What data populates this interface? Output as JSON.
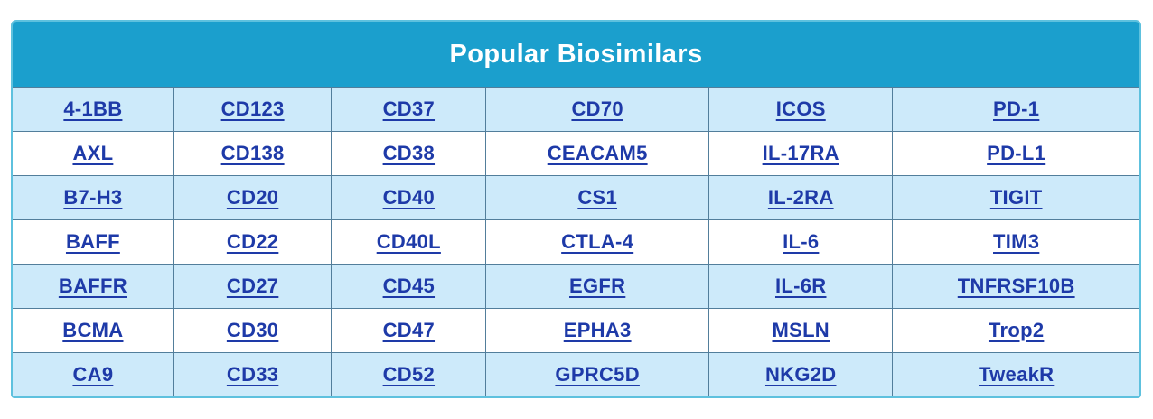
{
  "header": {
    "title": "Popular Biosimilars"
  },
  "colors": {
    "header_bg": "#1b9fcd",
    "row_alt": "#cdeafa",
    "row_white": "#ffffff",
    "grid_border": "#527e9b",
    "outer_border": "#5ec1de",
    "link_color": "#1e3aa8",
    "title_color": "#ffffff",
    "page_bg": "#ffffff"
  },
  "table": {
    "columns": 6,
    "column_widths_pct": [
      14.3,
      14.0,
      13.7,
      19.8,
      16.3,
      21.9
    ],
    "rows": [
      [
        "4-1BB",
        "CD123",
        "CD37",
        "CD70",
        "ICOS",
        "PD-1"
      ],
      [
        "AXL",
        "CD138",
        "CD38",
        "CEACAM5",
        "IL-17RA",
        "PD-L1"
      ],
      [
        "B7-H3",
        "CD20",
        "CD40",
        "CS1",
        "IL-2RA",
        "TIGIT"
      ],
      [
        "BAFF",
        "CD22",
        "CD40L",
        "CTLA-4",
        "IL-6",
        "TIM3"
      ],
      [
        "BAFFR",
        "CD27",
        "CD45",
        "EGFR",
        "IL-6R",
        "TNFRSF10B"
      ],
      [
        "BCMA",
        "CD30",
        "CD47",
        "EPHA3",
        "MSLN",
        "Trop2"
      ],
      [
        "CA9",
        "CD33",
        "CD52",
        "GPRC5D",
        "NKG2D",
        "TweakR"
      ]
    ]
  }
}
